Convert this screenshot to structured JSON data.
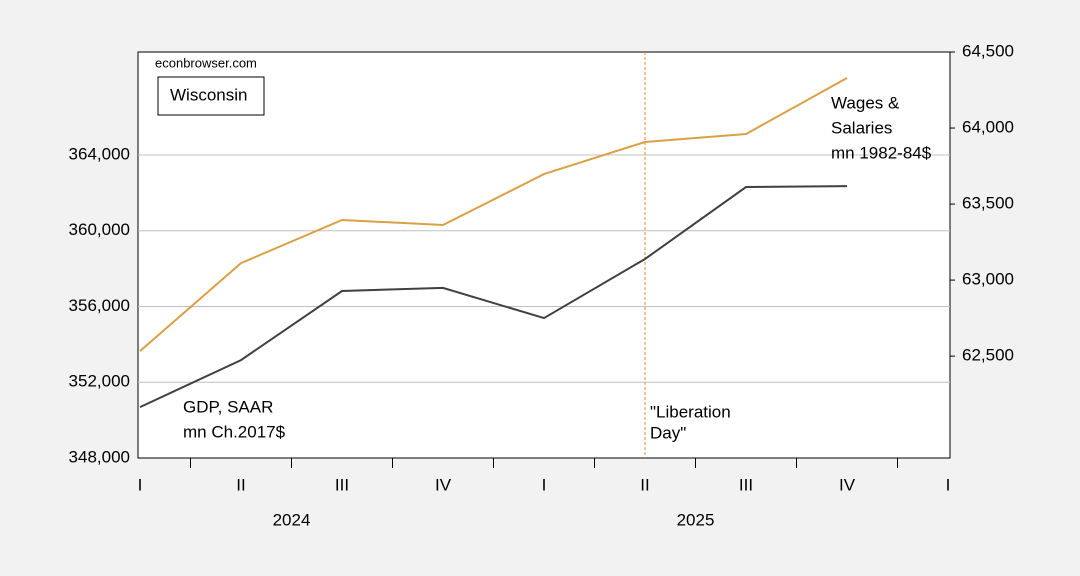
{
  "chart_data": {
    "type": "line",
    "source": "econbrowser.com",
    "title": "Wisconsin",
    "categories": [
      "I",
      "II",
      "III",
      "IV",
      "I",
      "II",
      "III",
      "IV",
      "I"
    ],
    "group_labels": [
      "2024",
      "2025"
    ],
    "series": [
      {
        "name": [
          "GDP, SAAR",
          "mn Ch.2017$"
        ],
        "color": "#404040",
        "axis": "y",
        "values": [
          350690,
          353170,
          356820,
          356980,
          355390,
          358510,
          362310,
          362360,
          null
        ]
      },
      {
        "name": [
          "Wages &",
          "Salaries",
          "mn 1982-84$"
        ],
        "color": "#d9a046",
        "axis": "y2",
        "values": [
          62533,
          63112,
          63395,
          63362,
          63697,
          63908,
          63961,
          64329,
          null
        ]
      }
    ],
    "ylim": [
      348000,
      369440
    ],
    "yticks": [
      {
        "value": 348000,
        "label": "348,000"
      },
      {
        "value": 352000,
        "label": "352,000"
      },
      {
        "value": 356000,
        "label": "356,000"
      },
      {
        "value": 360000,
        "label": "360,000"
      },
      {
        "value": 364000,
        "label": "364,000"
      }
    ],
    "y2lim": [
      61830,
      64500
    ],
    "y2ticks": [
      {
        "value": 62500,
        "label": "62,500"
      },
      {
        "value": 63000,
        "label": "63,000"
      },
      {
        "value": 63500,
        "label": "63,500"
      },
      {
        "value": 64000,
        "label": "64,000"
      },
      {
        "value": 64500,
        "label": "64,500"
      }
    ],
    "grid": true,
    "annotation": {
      "text": [
        "\"Liberation",
        "Day\""
      ],
      "at_category": 5,
      "color": "#e08a2e"
    }
  }
}
